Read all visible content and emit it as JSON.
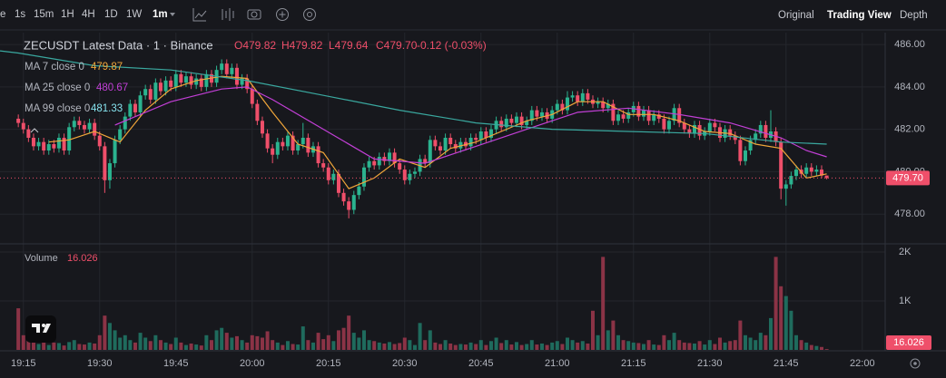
{
  "toolbar": {
    "intervals": [
      "e",
      "1s",
      "15m",
      "1H",
      "4H",
      "1D",
      "1W",
      "1m"
    ],
    "views": [
      "Original",
      "Trading View",
      "Depth"
    ]
  },
  "chart_data": {
    "type": "candlestick",
    "title": "ZECUSDT Latest Data · 1 · Binance",
    "legend": [
      "O479.82",
      "H479.82",
      "L479.64",
      "C479.70",
      "-0.12 (-0.03%)"
    ],
    "colors": {
      "up": "#2bb38f",
      "down": "#ef4f6a",
      "volume_up": "#1f6b5d",
      "volume_down": "#8b3346"
    },
    "ohlc": {
      "open": [
        482.5,
        482.3,
        482.0,
        481.6,
        481.2,
        481.4,
        481.0,
        481.3,
        481.1,
        481.6,
        481.0,
        482.1,
        482.4,
        482.2,
        482.0,
        482.3,
        481.7,
        481.2,
        479.6,
        480.4,
        481.5,
        482.0,
        482.6,
        483.2,
        482.8,
        483.6,
        483.9,
        483.4,
        484.2,
        483.8,
        484.3,
        484.0,
        484.6,
        484.2,
        484.5,
        484.1,
        484.4,
        484.0,
        484.6,
        484.2,
        484.8,
        485.1,
        484.6,
        484.9,
        484.1,
        484.4,
        483.9,
        483.2,
        482.4,
        481.8,
        481.1,
        480.8,
        481.4,
        481.2,
        481.7,
        481.0,
        481.3,
        481.6,
        480.9,
        481.2,
        480.4,
        480.2,
        479.6,
        479.9,
        479.0,
        478.6,
        478.2,
        478.9,
        479.3,
        480.2,
        480.5,
        480.3,
        480.7,
        480.5,
        480.9,
        480.4,
        480.1,
        479.6,
        479.9,
        480.0,
        480.6,
        480.4,
        481.5,
        481.2,
        481.0,
        481.6,
        481.3,
        481.1,
        481.4,
        481.2,
        481.6,
        481.5,
        481.9,
        481.6,
        482.0,
        482.4,
        482.1,
        482.5,
        482.3,
        482.6,
        482.2,
        482.4,
        482.9,
        482.6,
        482.8,
        482.5,
        482.9,
        483.2,
        482.9,
        483.5,
        483.6,
        483.3,
        483.7,
        483.4,
        483.2,
        483.3,
        483.0,
        483.2,
        482.4,
        482.7,
        482.5,
        482.8,
        483.1,
        482.6,
        482.9,
        482.4,
        482.7,
        482.5,
        482.0,
        482.4,
        483.0,
        482.3,
        482.0,
        481.8,
        482.2,
        481.7,
        481.9,
        482.3,
        482.1,
        481.6,
        482.0,
        481.7,
        481.5,
        480.5,
        481.0,
        481.5,
        481.8,
        482.2,
        481.6,
        481.9,
        481.4,
        479.2,
        479.4,
        479.8,
        480.1,
        479.9,
        480.2,
        480.0,
        480.1,
        479.82
      ],
      "high": [
        482.7,
        482.5,
        482.2,
        481.8,
        481.6,
        481.6,
        481.5,
        481.5,
        481.8,
        481.8,
        482.3,
        482.6,
        482.6,
        482.4,
        482.5,
        482.5,
        481.9,
        481.4,
        480.6,
        481.7,
        482.2,
        482.8,
        483.4,
        483.4,
        483.8,
        484.1,
        484.1,
        484.4,
        484.4,
        484.5,
        484.5,
        484.8,
        484.8,
        484.7,
        484.7,
        484.6,
        484.6,
        484.8,
        484.8,
        485.0,
        485.3,
        485.3,
        485.1,
        485.1,
        484.6,
        484.6,
        484.1,
        483.4,
        482.6,
        482.0,
        481.3,
        481.6,
        481.6,
        481.9,
        481.9,
        481.5,
        482.3,
        481.8,
        481.4,
        481.4,
        480.6,
        480.4,
        480.1,
        480.1,
        479.2,
        478.8,
        479.1,
        479.5,
        480.4,
        480.7,
        480.7,
        480.9,
        480.9,
        481.1,
        481.1,
        480.6,
        480.3,
        480.1,
        480.2,
        480.8,
        480.8,
        481.7,
        481.7,
        481.4,
        481.8,
        481.8,
        481.5,
        481.6,
        481.6,
        481.8,
        481.8,
        482.1,
        482.1,
        482.2,
        482.6,
        482.6,
        482.7,
        482.7,
        482.8,
        482.8,
        482.6,
        483.1,
        483.1,
        483.0,
        483.0,
        483.1,
        483.4,
        483.4,
        483.8,
        483.8,
        483.8,
        483.9,
        483.9,
        483.6,
        483.5,
        483.5,
        483.4,
        483.4,
        482.9,
        482.9,
        483.0,
        483.3,
        483.3,
        483.1,
        483.1,
        482.9,
        482.9,
        482.7,
        482.6,
        483.2,
        483.2,
        482.5,
        482.2,
        482.4,
        482.4,
        482.1,
        482.5,
        482.5,
        482.3,
        482.2,
        482.2,
        481.9,
        481.7,
        481.2,
        481.7,
        482.0,
        482.4,
        482.4,
        482.9,
        482.1,
        481.6,
        479.6,
        480.0,
        480.3,
        480.3,
        480.4,
        480.4,
        480.3,
        480.3,
        479.82
      ],
      "low": [
        482.1,
        481.8,
        481.4,
        481.0,
        481.0,
        480.8,
        480.8,
        480.9,
        480.9,
        480.8,
        480.8,
        481.9,
        482.0,
        481.8,
        481.8,
        481.5,
        481.0,
        479.0,
        479.2,
        480.2,
        481.3,
        481.8,
        482.4,
        482.6,
        482.6,
        483.4,
        483.2,
        483.2,
        483.6,
        483.6,
        483.8,
        483.8,
        484.0,
        484.0,
        483.9,
        483.9,
        483.8,
        483.8,
        484.0,
        484.0,
        484.6,
        484.4,
        484.4,
        483.9,
        483.9,
        483.7,
        483.0,
        482.2,
        481.6,
        480.9,
        480.4,
        480.6,
        481.0,
        481.0,
        480.8,
        480.8,
        481.1,
        480.7,
        480.7,
        480.2,
        480.0,
        479.4,
        479.4,
        478.8,
        478.4,
        477.8,
        478.0,
        478.7,
        479.1,
        480.0,
        480.1,
        480.1,
        480.3,
        480.3,
        480.2,
        479.9,
        479.4,
        479.4,
        479.7,
        479.8,
        480.2,
        480.2,
        481.0,
        480.8,
        480.8,
        481.1,
        480.9,
        480.9,
        481.0,
        481.0,
        481.3,
        481.3,
        481.4,
        481.4,
        481.8,
        481.9,
        481.9,
        482.1,
        482.1,
        482.0,
        482.0,
        482.2,
        482.4,
        482.4,
        482.3,
        482.3,
        482.7,
        482.7,
        482.7,
        483.3,
        483.1,
        483.1,
        483.2,
        483.0,
        483.0,
        482.8,
        482.8,
        482.2,
        482.2,
        482.3,
        482.3,
        482.6,
        482.4,
        482.4,
        482.2,
        482.2,
        482.3,
        481.8,
        481.8,
        482.2,
        482.1,
        481.8,
        481.6,
        481.6,
        481.5,
        481.5,
        481.7,
        481.9,
        481.4,
        481.4,
        481.5,
        481.3,
        480.3,
        480.3,
        480.8,
        481.3,
        481.6,
        481.4,
        481.4,
        481.2,
        478.7,
        478.4,
        479.2,
        479.6,
        479.7,
        479.7,
        479.8,
        479.8,
        479.7,
        479.64
      ],
      "close": [
        482.3,
        482.0,
        481.6,
        481.2,
        481.4,
        481.0,
        481.3,
        481.1,
        481.6,
        481.0,
        482.1,
        482.4,
        482.2,
        482.0,
        482.3,
        481.7,
        481.2,
        479.6,
        480.4,
        481.5,
        482.0,
        482.6,
        483.2,
        482.8,
        483.6,
        483.9,
        483.4,
        484.2,
        483.8,
        484.3,
        484.0,
        484.6,
        484.2,
        484.5,
        484.1,
        484.4,
        484.0,
        484.6,
        484.2,
        484.8,
        485.1,
        484.6,
        484.9,
        484.1,
        484.4,
        483.9,
        483.2,
        482.4,
        481.8,
        481.1,
        480.8,
        481.4,
        481.2,
        481.7,
        481.0,
        481.3,
        481.6,
        480.9,
        481.2,
        480.4,
        480.2,
        479.6,
        479.9,
        479.0,
        478.6,
        478.2,
        478.9,
        479.3,
        480.2,
        480.5,
        480.3,
        480.7,
        480.5,
        480.9,
        480.4,
        480.1,
        479.6,
        479.9,
        480.0,
        480.6,
        480.4,
        481.5,
        481.2,
        481.0,
        481.6,
        481.3,
        481.1,
        481.4,
        481.2,
        481.6,
        481.5,
        481.9,
        481.6,
        482.0,
        482.4,
        482.1,
        482.5,
        482.3,
        482.6,
        482.2,
        482.4,
        482.9,
        482.6,
        482.8,
        482.5,
        482.9,
        483.2,
        482.9,
        483.5,
        483.6,
        483.3,
        483.7,
        483.4,
        483.2,
        483.3,
        483.0,
        483.2,
        482.4,
        482.7,
        482.5,
        482.8,
        483.1,
        482.6,
        482.9,
        482.4,
        482.7,
        482.5,
        482.0,
        482.4,
        483.0,
        482.3,
        482.0,
        481.8,
        482.2,
        481.7,
        481.9,
        482.3,
        482.1,
        481.6,
        482.0,
        481.7,
        481.5,
        480.5,
        481.0,
        481.5,
        481.8,
        482.2,
        481.6,
        481.9,
        481.4,
        479.2,
        479.4,
        479.8,
        480.1,
        479.9,
        480.2,
        480.0,
        480.1,
        479.82,
        479.7
      ]
    },
    "last_price": {
      "value": 479.7,
      "label": "479.70"
    },
    "volume_title": "Volume",
    "volume": [
      850,
      300,
      200,
      150,
      120,
      180,
      100,
      150,
      140,
      90,
      160,
      200,
      120,
      110,
      150,
      130,
      300,
      700,
      550,
      400,
      250,
      300,
      200,
      150,
      350,
      250,
      180,
      300,
      200,
      150,
      120,
      250,
      150,
      100,
      130,
      110,
      90,
      300,
      200,
      400,
      450,
      350,
      250,
      280,
      200,
      150,
      300,
      280,
      250,
      380,
      200,
      150,
      100,
      180,
      120,
      110,
      480,
      200,
      150,
      350,
      220,
      300,
      180,
      400,
      450,
      700,
      350,
      250,
      400,
      200,
      180,
      150,
      130,
      160,
      120,
      140,
      250,
      200,
      100,
      550,
      200,
      400,
      150,
      120,
      200,
      130,
      100,
      120,
      110,
      150,
      120,
      200,
      100,
      180,
      250,
      140,
      200,
      110,
      160,
      100,
      120,
      200,
      110,
      130,
      100,
      150,
      180,
      120,
      250,
      200,
      150,
      180,
      130,
      800,
      300,
      1900,
      400,
      600,
      300,
      200,
      180,
      150,
      140,
      120,
      200,
      110,
      100,
      300,
      200,
      350,
      200,
      150,
      140,
      130,
      180,
      110,
      200,
      120,
      250,
      150,
      180,
      200,
      600,
      300,
      250,
      200,
      350,
      300,
      650,
      1900,
      1300,
      1100,
      800,
      300,
      200,
      150,
      100,
      80,
      60,
      16.026
    ],
    "ma": [
      {
        "name": "MA 7 close 0",
        "value": 479.87,
        "color": "#f0a63a",
        "x": [
          6,
          10,
          15,
          20,
          25,
          30,
          35,
          40,
          45,
          50,
          55,
          60,
          65,
          70,
          75,
          80,
          85,
          90,
          95,
          100,
          105,
          110,
          115,
          120,
          125,
          130,
          135,
          140,
          145,
          150,
          155,
          159
        ],
        "values": [
          481.4,
          481.5,
          481.9,
          481.4,
          482.9,
          483.9,
          484.3,
          484.5,
          484.4,
          482.8,
          481.3,
          480.9,
          479.2,
          479.7,
          480.6,
          480.2,
          481.1,
          481.4,
          481.9,
          482.4,
          482.7,
          483.3,
          483.3,
          482.7,
          482.7,
          482.4,
          481.9,
          481.8,
          481.3,
          481.1,
          479.7,
          479.9
        ]
      },
      {
        "name": "MA 25 close 0",
        "value": 480.67,
        "color": "#c23fd6",
        "x": [
          19,
          30,
          40,
          45,
          50,
          60,
          70,
          80,
          90,
          100,
          110,
          120,
          130,
          140,
          150,
          155,
          159
        ],
        "values": [
          482.2,
          483.3,
          483.9,
          484.0,
          483.4,
          482.0,
          480.6,
          480.4,
          481.2,
          482.0,
          482.8,
          483.0,
          482.7,
          482.3,
          481.6,
          481.0,
          480.7
        ]
      },
      {
        "name": "MA 99 close 0",
        "value": 481.33,
        "color": "#3aa89f",
        "label_color": "#86e3ee",
        "x": [
          -3.6,
          0,
          15,
          30,
          45,
          60,
          75,
          90,
          105,
          120,
          135,
          150,
          159
        ],
        "values": [
          485.7,
          485.6,
          485.0,
          484.8,
          484.3,
          483.6,
          482.9,
          482.3,
          482.0,
          481.9,
          481.8,
          481.4,
          481.3
        ]
      }
    ],
    "xlim": [
      -3.6,
      170.5
    ],
    "xticks": [
      {
        "value": 1,
        "label": "19:15"
      },
      {
        "value": 16,
        "label": "19:30"
      },
      {
        "value": 31,
        "label": "19:45"
      },
      {
        "value": 46,
        "label": "20:00"
      },
      {
        "value": 61,
        "label": "20:15"
      },
      {
        "value": 76,
        "label": "20:30"
      },
      {
        "value": 91,
        "label": "20:45"
      },
      {
        "value": 106,
        "label": "21:00"
      },
      {
        "value": 121,
        "label": "21:15"
      },
      {
        "value": 136,
        "label": "21:30"
      },
      {
        "value": 151,
        "label": "21:45"
      },
      {
        "value": 166,
        "label": "22:00"
      }
    ],
    "ylim": [
      476.64,
      486.56
    ],
    "yticks": [
      {
        "value": 478,
        "label": "478.00"
      },
      {
        "value": 480,
        "label": "480.00"
      },
      {
        "value": 482,
        "label": "482.00"
      },
      {
        "value": 484,
        "label": "484.00"
      },
      {
        "value": 486,
        "label": "486.00"
      }
    ],
    "volume_ylim": [
      0,
      2148
    ],
    "volume_yticks": [
      {
        "value": 1000,
        "label": "1K"
      },
      {
        "value": 2000,
        "label": "2K"
      }
    ],
    "grid": true
  }
}
